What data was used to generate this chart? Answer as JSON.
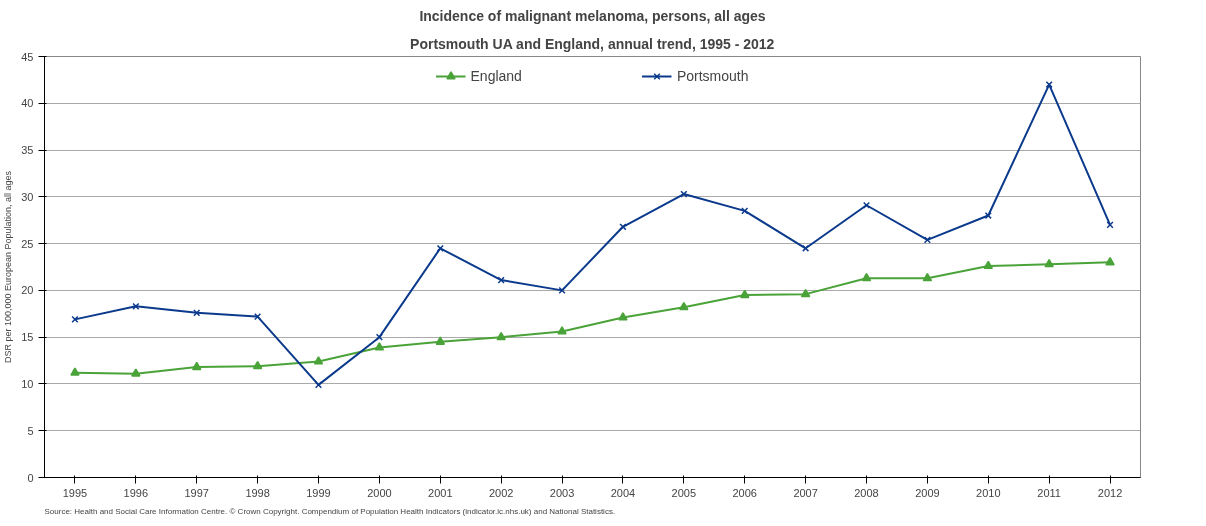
{
  "chart_data": {
    "type": "line",
    "title": "Incidence of malignant melanoma, persons, all ages",
    "subtitle": "Portsmouth UA and England, annual trend, 1995 - 2012",
    "ylabel": "DSR per 100,000 European Population, all ages",
    "categories": [
      "1995",
      "1996",
      "1997",
      "1998",
      "1999",
      "2000",
      "2001",
      "2002",
      "2003",
      "2004",
      "2005",
      "2006",
      "2007",
      "2008",
      "2009",
      "2010",
      "2011",
      "2012"
    ],
    "series": [
      {
        "name": "England",
        "color": "#4aa338",
        "marker": "triangle",
        "values": [
          11.2,
          11.1,
          11.8,
          11.9,
          12.4,
          13.9,
          14.5,
          15.0,
          15.6,
          17.1,
          18.2,
          19.5,
          19.6,
          21.3,
          21.3,
          22.6,
          22.8,
          23.0
        ]
      },
      {
        "name": "Portsmouth",
        "color": "#0b3a8c",
        "marker": "cross",
        "values": [
          16.9,
          18.3,
          17.6,
          17.2,
          9.9,
          15.0,
          24.5,
          21.1,
          20.0,
          26.8,
          30.3,
          28.5,
          24.5,
          29.1,
          25.4,
          28.0,
          42.0,
          27.0
        ]
      }
    ],
    "ylim": [
      0,
      45
    ],
    "yticks": [
      0,
      5,
      10,
      15,
      20,
      25,
      30,
      35,
      40,
      45
    ],
    "grid": "y",
    "legend": "top",
    "annotations": [
      "Source: Health and Social Care Information Centre. © Crown Copyright. Compendium of Population Health Indicators (indicator.ic.nhs.uk) and National Statistics."
    ]
  }
}
